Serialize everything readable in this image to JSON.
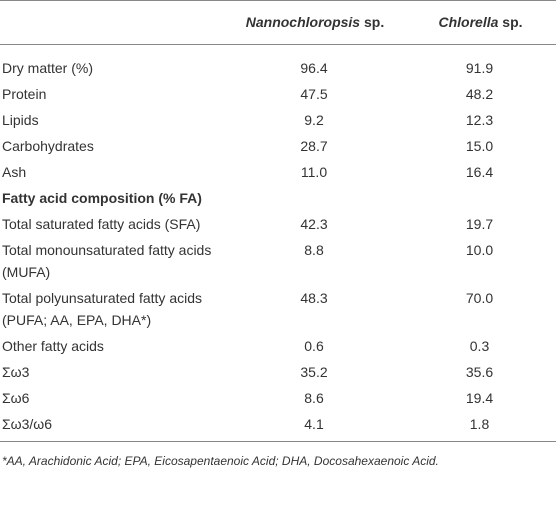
{
  "table": {
    "columns": [
      {
        "name": "Nannochloropsis",
        "suffix": "sp."
      },
      {
        "name": "Chlorella",
        "suffix": "sp."
      }
    ],
    "rows_top": [
      {
        "label": "Dry matter (%)",
        "values": [
          "96.4",
          "91.9"
        ]
      },
      {
        "label": "Protein",
        "values": [
          "47.5",
          "48.2"
        ]
      },
      {
        "label": "Lipids",
        "values": [
          "9.2",
          "12.3"
        ]
      },
      {
        "label": "Carbohydrates",
        "values": [
          "28.7",
          "15.0"
        ]
      },
      {
        "label": "Ash",
        "values": [
          "11.0",
          "16.4"
        ]
      }
    ],
    "section_heading": "Fatty acid composition (% FA)",
    "rows_bottom": [
      {
        "label": "Total saturated fatty acids (SFA)",
        "values": [
          "42.3",
          "19.7"
        ]
      },
      {
        "label": "Total monounsaturated fatty acids (MUFA)",
        "values": [
          "8.8",
          "10.0"
        ]
      },
      {
        "label": "Total polyunsaturated fatty acids (PUFA; AA, EPA, DHA*)",
        "values": [
          "48.3",
          "70.0"
        ]
      },
      {
        "label": "Other fatty acids",
        "values": [
          "0.6",
          "0.3"
        ]
      },
      {
        "label": "Σω3",
        "values": [
          "35.2",
          "35.6"
        ]
      },
      {
        "label": "Σω6",
        "values": [
          "8.6",
          "19.4"
        ]
      },
      {
        "label": "Σω3/ω6",
        "values": [
          "4.1",
          "1.8"
        ]
      }
    ],
    "footnote": "*AA, Arachidonic Acid; EPA, Eicosapentaenoic Acid; DHA, Docosahexaenoic Acid."
  }
}
